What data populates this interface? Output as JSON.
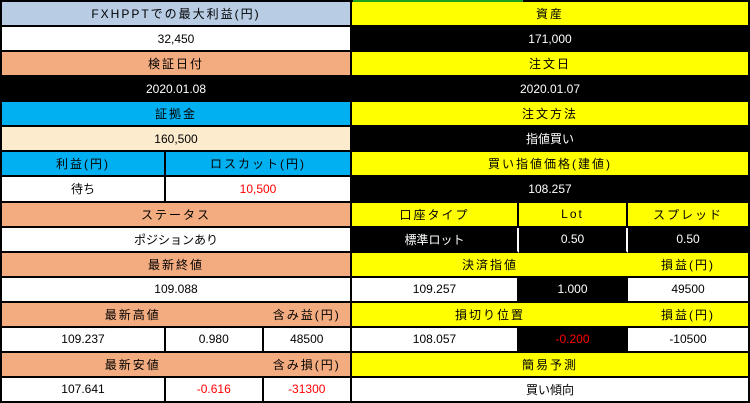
{
  "colors": {
    "header_blue": "#B8CCE4",
    "header_orange": "#F3AC80",
    "header_cyan": "#00B0F0",
    "value_cream": "#FDEBCD",
    "header_yellow": "#FFFF00",
    "cell_black": "#000000",
    "negative_red": "#FF0000",
    "top_green_accent": "#1FA11F"
  },
  "left_table": {
    "max_profit_header": "FXHPPTでの最大利益(円)",
    "max_profit_value": "32,450",
    "verify_date_header": "検証日付",
    "verify_date_value": "2020.01.08",
    "margin_header": "証拠金",
    "margin_value": "160,500",
    "profit_header": "利益(円)",
    "losscut_header": "ロスカット(円)",
    "profit_value": "待ち",
    "losscut_value": "10,500",
    "status_header": "ステータス",
    "status_value": "ポジションあり",
    "latest_close_header": "最新終値",
    "latest_close_value": "109.088",
    "latest_high_header": "最新高値",
    "unrealized_gain_header": "含み益(円)",
    "latest_high_value": "109.237",
    "high_diff_value": "0.980",
    "unrealized_gain_value": "48500",
    "latest_low_header": "最新安値",
    "unrealized_loss_header": "含み損(円)",
    "latest_low_value": "107.641",
    "low_diff_value": "-0.616",
    "unrealized_loss_value": "-31300"
  },
  "right_table": {
    "asset_header": "資産",
    "asset_value": "171,000",
    "order_date_header": "注文日",
    "order_date_value": "2020.01.07",
    "order_method_header": "注文方法",
    "order_method_value": "指値買い",
    "buy_limit_price_header": "買い指値価格(建値)",
    "buy_limit_price_value": "108.257",
    "account_type_header": "口座タイプ",
    "lot_header": "Lot",
    "spread_header": "スプレッド",
    "account_type_value": "標準ロット",
    "lot_value": "0.50",
    "spread_value": "0.50",
    "settle_limit_header": "決済指値",
    "settle_pl_header": "損益(円)",
    "settle_limit_value": "109.257",
    "settle_diff_value": "1.000",
    "settle_pl_value": "49500",
    "stoploss_header": "損切り位置",
    "stoploss_pl_header": "損益(円)",
    "stoploss_value": "108.057",
    "stoploss_diff_value": "-0.200",
    "stoploss_pl_value": "-10500",
    "forecast_header": "簡易予測",
    "forecast_value": "買い傾向"
  }
}
